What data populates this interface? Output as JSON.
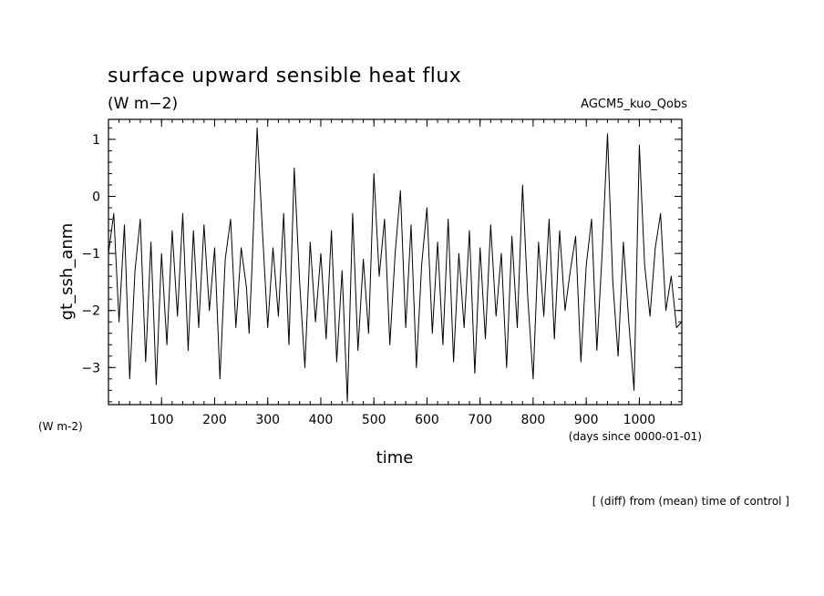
{
  "chart_data": {
    "type": "line",
    "title": "surface upward sensible heat flux",
    "title_units": "(W m−2)",
    "source_label": "AGCM5_kuo_Qobs",
    "ylabel": "gt_ssh_anm",
    "yunits": "(W m-2)",
    "xlabel": "time",
    "xunits": "(days since 0000-01-01)",
    "footnote": "[ (diff) from (mean) time of control ]",
    "xlim": [
      0,
      1080
    ],
    "ylim": [
      -3.65,
      1.35
    ],
    "xticks": [
      100,
      200,
      300,
      400,
      500,
      600,
      700,
      800,
      900,
      1000
    ],
    "yticks": [
      1,
      0,
      -1,
      -2,
      -3
    ],
    "ytick_labels": [
      "1",
      "0",
      "−1",
      "−2",
      "−3"
    ],
    "grid": false,
    "legend": "none",
    "line_color": "#000000",
    "series": [
      {
        "x": [
          0,
          10,
          20,
          30,
          40,
          50,
          60,
          70,
          80,
          90,
          100,
          110,
          120,
          130,
          140,
          150,
          160,
          170,
          180,
          190,
          200,
          210,
          220,
          230,
          240,
          250,
          260,
          265,
          270,
          280,
          290,
          300,
          310,
          320,
          330,
          340,
          350,
          360,
          370,
          380,
          390,
          400,
          410,
          420,
          430,
          440,
          450,
          460,
          470,
          480,
          490,
          500,
          510,
          520,
          530,
          540,
          550,
          560,
          570,
          580,
          590,
          600,
          610,
          620,
          630,
          640,
          650,
          660,
          670,
          680,
          690,
          700,
          710,
          720,
          730,
          740,
          750,
          760,
          770,
          780,
          790,
          800,
          810,
          820,
          830,
          840,
          850,
          860,
          870,
          880,
          890,
          900,
          910,
          920,
          930,
          940,
          950,
          960,
          970,
          980,
          990,
          1000,
          1010,
          1020,
          1030,
          1040,
          1050,
          1060,
          1070,
          1080
        ],
        "y": [
          -1.0,
          -0.3,
          -2.2,
          -0.5,
          -3.2,
          -1.3,
          -0.4,
          -2.9,
          -0.8,
          -3.3,
          -1.0,
          -2.6,
          -0.6,
          -2.1,
          -0.3,
          -2.7,
          -0.6,
          -2.3,
          -0.5,
          -2.0,
          -0.9,
          -3.2,
          -1.1,
          -0.4,
          -2.3,
          -0.9,
          -1.6,
          -2.4,
          -1.3,
          1.2,
          -0.6,
          -2.3,
          -0.9,
          -2.1,
          -0.3,
          -2.6,
          0.5,
          -1.5,
          -3.0,
          -0.8,
          -2.2,
          -1.0,
          -2.5,
          -0.6,
          -2.9,
          -1.3,
          -3.6,
          -0.3,
          -2.7,
          -1.1,
          -2.4,
          0.4,
          -1.4,
          -0.4,
          -2.6,
          -1.0,
          0.1,
          -2.3,
          -0.5,
          -3.0,
          -1.2,
          -0.2,
          -2.4,
          -0.8,
          -2.6,
          -0.4,
          -2.9,
          -1.0,
          -2.3,
          -0.6,
          -3.1,
          -0.9,
          -2.5,
          -0.5,
          -2.1,
          -1.0,
          -3.0,
          -0.7,
          -2.3,
          0.2,
          -1.8,
          -3.2,
          -0.8,
          -2.1,
          -0.4,
          -2.5,
          -0.6,
          -2.0,
          -1.3,
          -0.7,
          -2.9,
          -1.2,
          -0.4,
          -2.7,
          -1.0,
          1.1,
          -1.5,
          -2.8,
          -0.8,
          -2.2,
          -3.4,
          0.9,
          -1.2,
          -2.1,
          -0.9,
          -0.3,
          -2.0,
          -1.4,
          -2.3,
          -2.2
        ]
      }
    ]
  }
}
